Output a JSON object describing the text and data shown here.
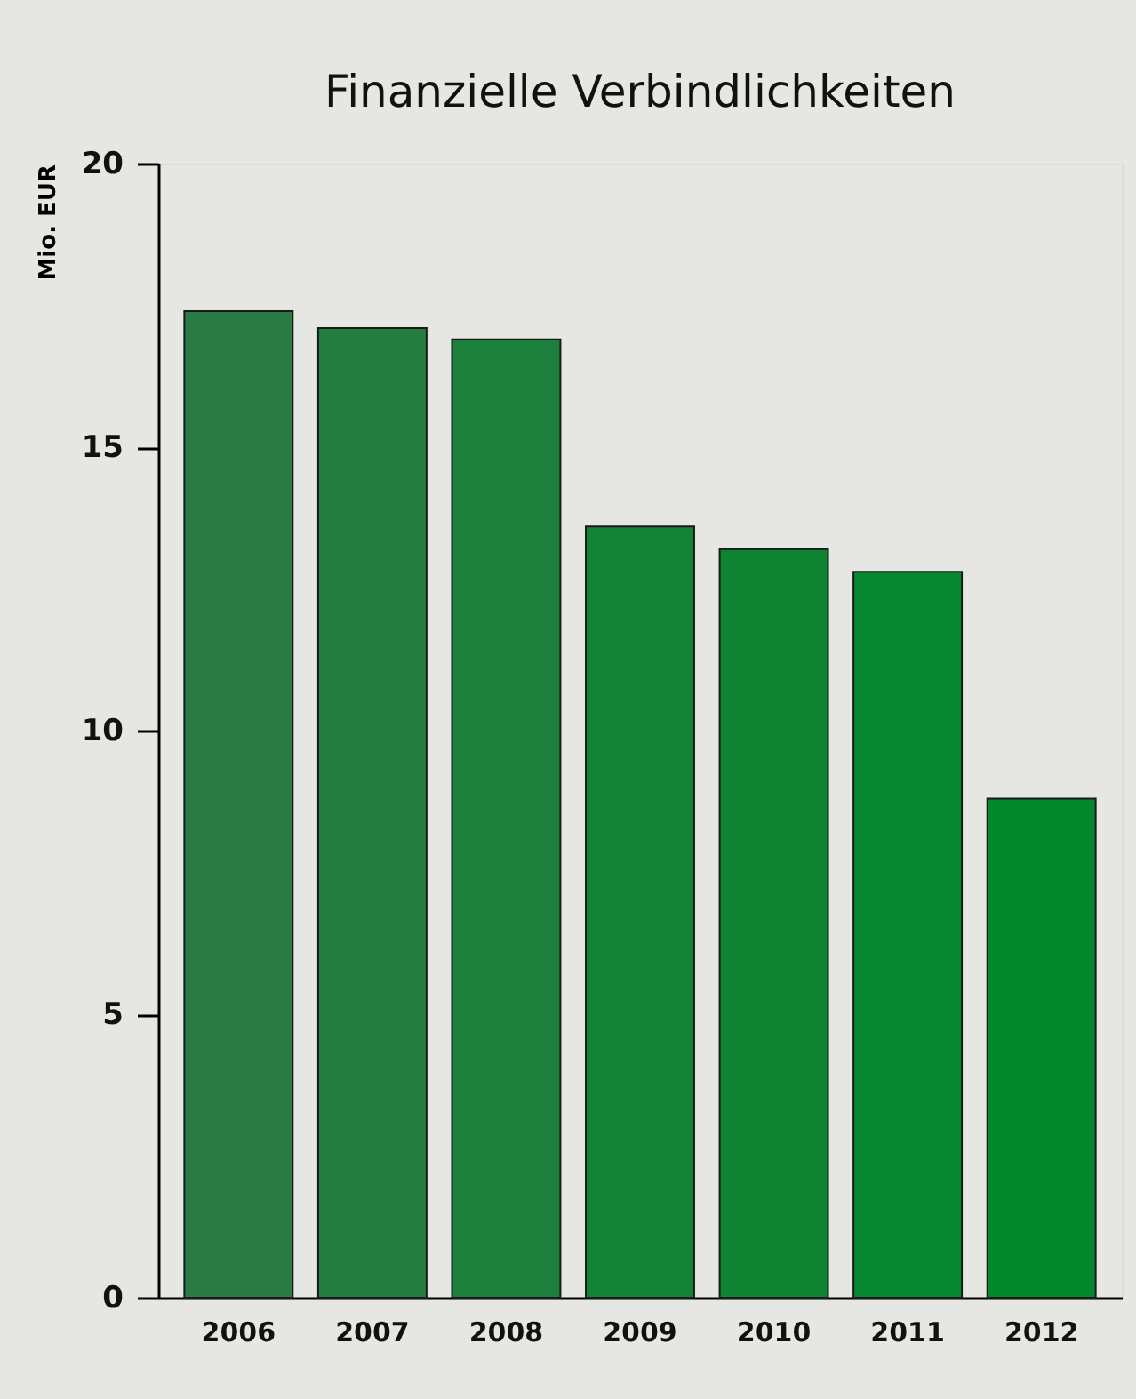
{
  "chart_data": {
    "type": "bar",
    "title": "Finanzielle Verbindlichkeiten",
    "ylabel": "Mio. EUR",
    "categories": [
      "2006",
      "2007",
      "2008",
      "2009",
      "2010",
      "2011",
      "2012"
    ],
    "values": [
      17.4,
      17.1,
      16.9,
      13.6,
      13.2,
      12.8,
      8.8
    ],
    "colors": [
      "#2a7a45",
      "#237c40",
      "#1c7f3c",
      "#148237",
      "#0e8433",
      "#078630",
      "#01882d"
    ],
    "ylim": [
      0,
      20
    ],
    "yticks": [
      0,
      5,
      10,
      15,
      20
    ],
    "grid": false,
    "legend": false
  }
}
